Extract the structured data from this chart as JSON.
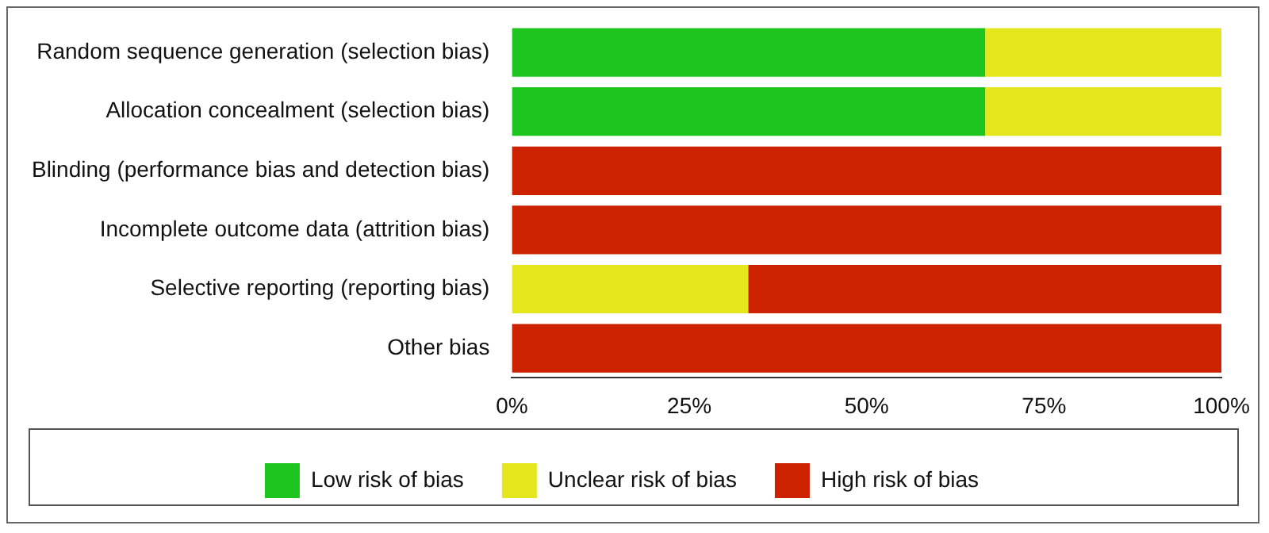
{
  "chart_data": {
    "type": "bar",
    "orientation": "horizontal",
    "stacked": true,
    "categories": [
      "Random sequence generation (selection bias)",
      "Allocation concealment (selection bias)",
      "Blinding (performance bias and detection bias)",
      "Incomplete outcome data (attrition bias)",
      "Selective reporting (reporting bias)",
      "Other bias"
    ],
    "series": [
      {
        "name": "Low risk of bias",
        "color": "#1ec51e",
        "values": [
          66.7,
          66.7,
          0,
          0,
          0,
          0
        ]
      },
      {
        "name": "Unclear risk of bias",
        "color": "#e6e61e",
        "values": [
          33.3,
          33.3,
          0,
          0,
          33.3,
          0
        ]
      },
      {
        "name": "High risk of bias",
        "color": "#cc2200",
        "values": [
          0,
          0,
          100,
          100,
          66.7,
          100
        ]
      }
    ],
    "xlim": [
      0,
      100
    ],
    "xticks": [
      {
        "value": 0,
        "label": "0%"
      },
      {
        "value": 25,
        "label": "25%"
      },
      {
        "value": 50,
        "label": "50%"
      },
      {
        "value": 75,
        "label": "75%"
      },
      {
        "value": 100,
        "label": "100%"
      }
    ],
    "grid": false,
    "legend": "bottom"
  }
}
